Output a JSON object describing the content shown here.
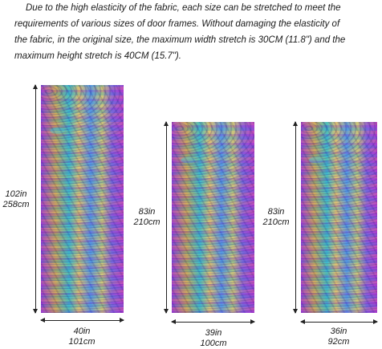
{
  "description": {
    "line1": "Due to the high elasticity of the fabric, each size can be stretched to meet the",
    "line2": "requirements of various sizes of door frames. Without damaging the elasticity of",
    "line3": "the fabric, in the original size, the maximum width stretch is 30CM (11.8\") and the",
    "line4": "maximum height stretch is 40CM (15.7\")."
  },
  "panels": [
    {
      "height_in": "102in",
      "height_cm": "258cm",
      "width_in": "40in",
      "width_cm": "101cm"
    },
    {
      "height_in": "83in",
      "height_cm": "210cm",
      "width_in": "39in",
      "width_cm": "100cm"
    },
    {
      "height_in": "83in",
      "height_cm": "210cm",
      "width_in": "36in",
      "width_cm": "92cm"
    }
  ],
  "colors": {
    "purple": "#b04ce0",
    "gold": "#d2b36a",
    "turquoise": "#4cc7d8",
    "blue": "#6aa4f0"
  }
}
